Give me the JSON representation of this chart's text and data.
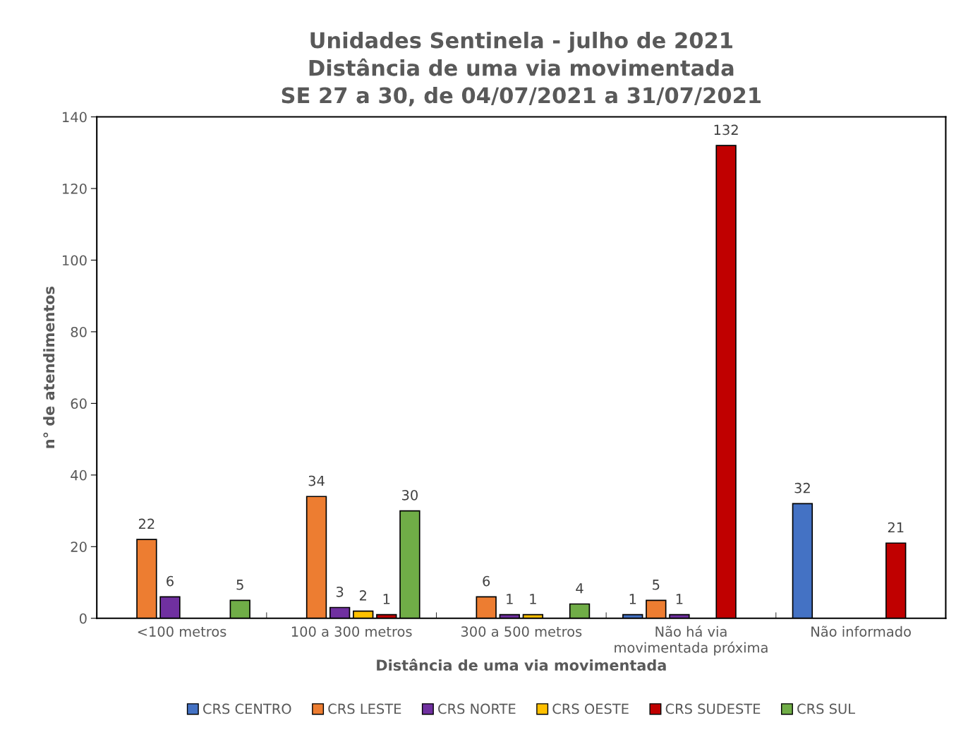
{
  "chart_data": {
    "type": "bar",
    "title": "Unidades Sentinela - julho de 2021\nDistância de uma via movimentada\nSE 27 a 30, de 04/07/2021 a 31/07/2021",
    "xlabel": "Distância de uma via movimentada",
    "ylabel": "n° de atendimentos",
    "categories": [
      "<100 metros",
      "100 a 300 metros",
      "300 a 500 metros",
      "Não há via\nmovimentada próxima",
      "Não informado"
    ],
    "series": [
      {
        "name": "CRS CENTRO",
        "color": "#4472c4",
        "values": [
          null,
          null,
          null,
          1,
          32
        ]
      },
      {
        "name": "CRS LESTE",
        "color": "#ed7d31",
        "values": [
          22,
          34,
          6,
          5,
          null
        ]
      },
      {
        "name": "CRS NORTE",
        "color": "#7030a0",
        "values": [
          6,
          3,
          1,
          1,
          null
        ]
      },
      {
        "name": "CRS OESTE",
        "color": "#ffc000",
        "values": [
          null,
          2,
          1,
          null,
          null
        ]
      },
      {
        "name": "CRS SUDESTE",
        "color": "#c00000",
        "values": [
          null,
          1,
          null,
          132,
          21
        ]
      },
      {
        "name": "CRS SUL",
        "color": "#70ad47",
        "values": [
          5,
          30,
          4,
          null,
          null
        ]
      }
    ],
    "ylim": [
      0,
      140
    ],
    "yticks": [
      0,
      20,
      40,
      60,
      80,
      100,
      120,
      140
    ],
    "data_labels": true,
    "grid": false,
    "legend": "bottom"
  }
}
